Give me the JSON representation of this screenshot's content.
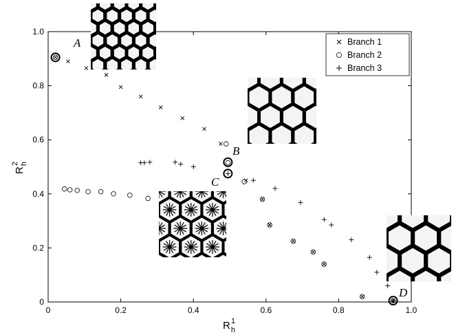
{
  "chart_data": {
    "type": "scatter",
    "xlabel": {
      "base": "R",
      "sup": "1",
      "sub": "h"
    },
    "ylabel": {
      "base": "R",
      "sup": "2",
      "sub": "h"
    },
    "xlim": [
      0,
      1.0
    ],
    "ylim": [
      0,
      1.0
    ],
    "xticks": [
      "0",
      "0.2",
      "0.4",
      "0.6",
      "0.8",
      "1.0"
    ],
    "yticks": [
      "0",
      "0.2",
      "0.4",
      "0.6",
      "0.8",
      "1.0"
    ],
    "grid": false,
    "legend_position": "top-right",
    "series": [
      {
        "name": "Branch 1",
        "marker": "x",
        "points": [
          [
            0.02,
            0.905
          ],
          [
            0.055,
            0.89
          ],
          [
            0.105,
            0.865
          ],
          [
            0.16,
            0.84
          ],
          [
            0.2,
            0.795
          ],
          [
            0.255,
            0.76
          ],
          [
            0.31,
            0.72
          ],
          [
            0.37,
            0.68
          ],
          [
            0.43,
            0.64
          ],
          [
            0.475,
            0.585
          ],
          [
            0.545,
            0.45
          ],
          [
            0.59,
            0.38
          ],
          [
            0.61,
            0.285
          ],
          [
            0.675,
            0.225
          ],
          [
            0.73,
            0.185
          ],
          [
            0.76,
            0.14
          ],
          [
            0.865,
            0.02
          ],
          [
            0.95,
            0.005
          ]
        ]
      },
      {
        "name": "Branch 2",
        "marker": "o",
        "points": [
          [
            0.02,
            0.905
          ],
          [
            0.045,
            0.418
          ],
          [
            0.06,
            0.415
          ],
          [
            0.08,
            0.413
          ],
          [
            0.11,
            0.408
          ],
          [
            0.145,
            0.408
          ],
          [
            0.18,
            0.4
          ],
          [
            0.225,
            0.395
          ],
          [
            0.275,
            0.383
          ],
          [
            0.49,
            0.585
          ],
          [
            0.495,
            0.515
          ],
          [
            0.54,
            0.445
          ],
          [
            0.59,
            0.38
          ],
          [
            0.61,
            0.285
          ],
          [
            0.675,
            0.225
          ],
          [
            0.73,
            0.185
          ],
          [
            0.76,
            0.14
          ],
          [
            0.865,
            0.02
          ],
          [
            0.95,
            0.005
          ]
        ]
      },
      {
        "name": "Branch 3",
        "marker": "+",
        "points": [
          [
            0.255,
            0.515
          ],
          [
            0.265,
            0.515
          ],
          [
            0.28,
            0.517
          ],
          [
            0.35,
            0.517
          ],
          [
            0.365,
            0.51
          ],
          [
            0.4,
            0.5
          ],
          [
            0.495,
            0.475
          ],
          [
            0.565,
            0.45
          ],
          [
            0.625,
            0.42
          ],
          [
            0.695,
            0.368
          ],
          [
            0.76,
            0.305
          ],
          [
            0.78,
            0.285
          ],
          [
            0.835,
            0.23
          ],
          [
            0.885,
            0.165
          ],
          [
            0.905,
            0.11
          ],
          [
            0.935,
            0.06
          ],
          [
            0.95,
            0.005
          ]
        ]
      }
    ],
    "highlighted_points": [
      {
        "label": "A",
        "x": 0.02,
        "y": 0.905
      },
      {
        "label": "B",
        "x": 0.495,
        "y": 0.517
      },
      {
        "label": "C",
        "x": 0.495,
        "y": 0.475
      },
      {
        "label": "D",
        "x": 0.95,
        "y": 0.005
      }
    ],
    "annotations": [
      "A",
      "B",
      "C",
      "D"
    ],
    "insets": [
      {
        "label": "A",
        "pattern": "thick-honeycomb"
      },
      {
        "label": "B",
        "pattern": "sparse-honeycomb"
      },
      {
        "label": "C",
        "pattern": "star-honeycomb"
      },
      {
        "label": "D",
        "pattern": "wide-honeycomb"
      }
    ]
  }
}
